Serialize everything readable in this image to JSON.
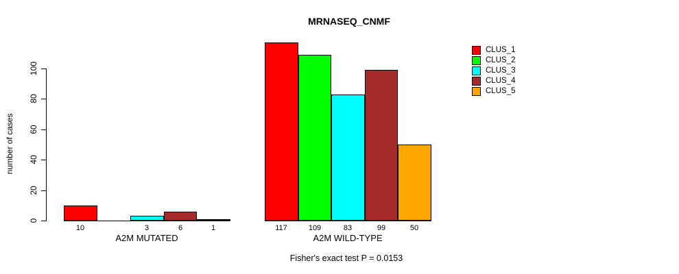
{
  "title": "MRNASEQ_CNMF",
  "chart_data": {
    "type": "bar",
    "title": "MRNASEQ_CNMF",
    "xlabel": "",
    "ylabel": "number of cases",
    "ylim": [
      0,
      117
    ],
    "yticks": [
      0,
      20,
      40,
      60,
      80,
      100
    ],
    "grid": false,
    "legend_position": "top-right",
    "series": [
      {
        "name": "CLUS_1",
        "color": "#FF0000"
      },
      {
        "name": "CLUS_2",
        "color": "#00FF00"
      },
      {
        "name": "CLUS_3",
        "color": "#00FFFF"
      },
      {
        "name": "CLUS_4",
        "color": "#A52A2A"
      },
      {
        "name": "CLUS_5",
        "color": "#FFA500"
      }
    ],
    "groups": [
      {
        "label": "A2M MUTATED",
        "values": [
          10,
          0,
          3,
          6,
          1
        ],
        "value_labels": [
          "10",
          "",
          "3",
          "6",
          "1"
        ]
      },
      {
        "label": "A2M WILD-TYPE",
        "values": [
          117,
          109,
          83,
          99,
          50
        ],
        "value_labels": [
          "117",
          "109",
          "83",
          "99",
          "50"
        ]
      }
    ],
    "annotation": "Fisher's exact test P = 0.0153"
  }
}
